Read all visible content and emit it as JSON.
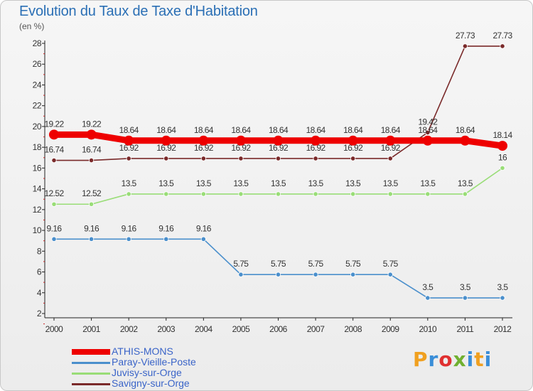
{
  "chart_data": {
    "type": "line",
    "title": "Evolution du Taux de Taxe d'Habitation",
    "unit_label": "(en %)",
    "x": [
      "2000",
      "2001",
      "2002",
      "2003",
      "2004",
      "2005",
      "2006",
      "2007",
      "2008",
      "2009",
      "2010",
      "2011",
      "2012"
    ],
    "ylim": [
      2,
      28
    ],
    "yticks": [
      2,
      4,
      6,
      8,
      10,
      12,
      14,
      16,
      18,
      20,
      22,
      24,
      26,
      28
    ],
    "grid": false,
    "legend_position": "bottom-left",
    "series": [
      {
        "name": "ATHIS-MONS",
        "color": "#ee0000",
        "values": [
          19.22,
          19.22,
          18.64,
          18.64,
          18.64,
          18.64,
          18.64,
          18.64,
          18.64,
          18.64,
          18.64,
          18.64,
          18.14
        ],
        "labels": [
          "19.22",
          "19.22",
          "18.64",
          "18.64",
          "18.64",
          "18.64",
          "18.64",
          "18.64",
          "18.64",
          "18.64",
          "18.64",
          "18.64",
          "18.14"
        ]
      },
      {
        "name": "Paray-Vieille-Poste",
        "color": "#4a8fcc",
        "values": [
          9.16,
          9.16,
          9.16,
          9.16,
          9.16,
          5.75,
          5.75,
          5.75,
          5.75,
          5.75,
          3.5,
          3.5,
          3.5
        ],
        "labels": [
          "9.16",
          "9.16",
          "9.16",
          "9.16",
          "9.16",
          "5.75",
          "5.75",
          "5.75",
          "5.75",
          "5.75",
          "3.5",
          "3.5",
          "3.5"
        ]
      },
      {
        "name": "Juvisy-sur-Orge",
        "color": "#99dd77",
        "values": [
          12.52,
          12.52,
          13.5,
          13.5,
          13.5,
          13.5,
          13.5,
          13.5,
          13.5,
          13.5,
          13.5,
          13.5,
          16
        ],
        "labels": [
          "12.52",
          "12.52",
          "13.5",
          "13.5",
          "13.5",
          "13.5",
          "13.5",
          "13.5",
          "13.5",
          "13.5",
          "13.5",
          "13.5",
          "16"
        ]
      },
      {
        "name": "Savigny-sur-Orge",
        "color": "#7a2a2a",
        "values": [
          16.74,
          16.74,
          16.92,
          16.92,
          16.92,
          16.92,
          16.92,
          16.92,
          16.92,
          16.92,
          19.42,
          27.73,
          27.73
        ],
        "labels": [
          "16.74",
          "16.74",
          "16.92",
          "16.92",
          "16.92",
          "16.92",
          "16.92",
          "16.92",
          "16.92",
          "16.92",
          "19.42",
          "27.73",
          "27.73"
        ]
      }
    ]
  },
  "logo": {
    "text": "Proxiti",
    "colors": [
      "#f0a020",
      "#3a8ed8",
      "#e03030",
      "#70b030",
      "#3a8ed8",
      "#f0a020",
      "#3a8ed8"
    ]
  }
}
